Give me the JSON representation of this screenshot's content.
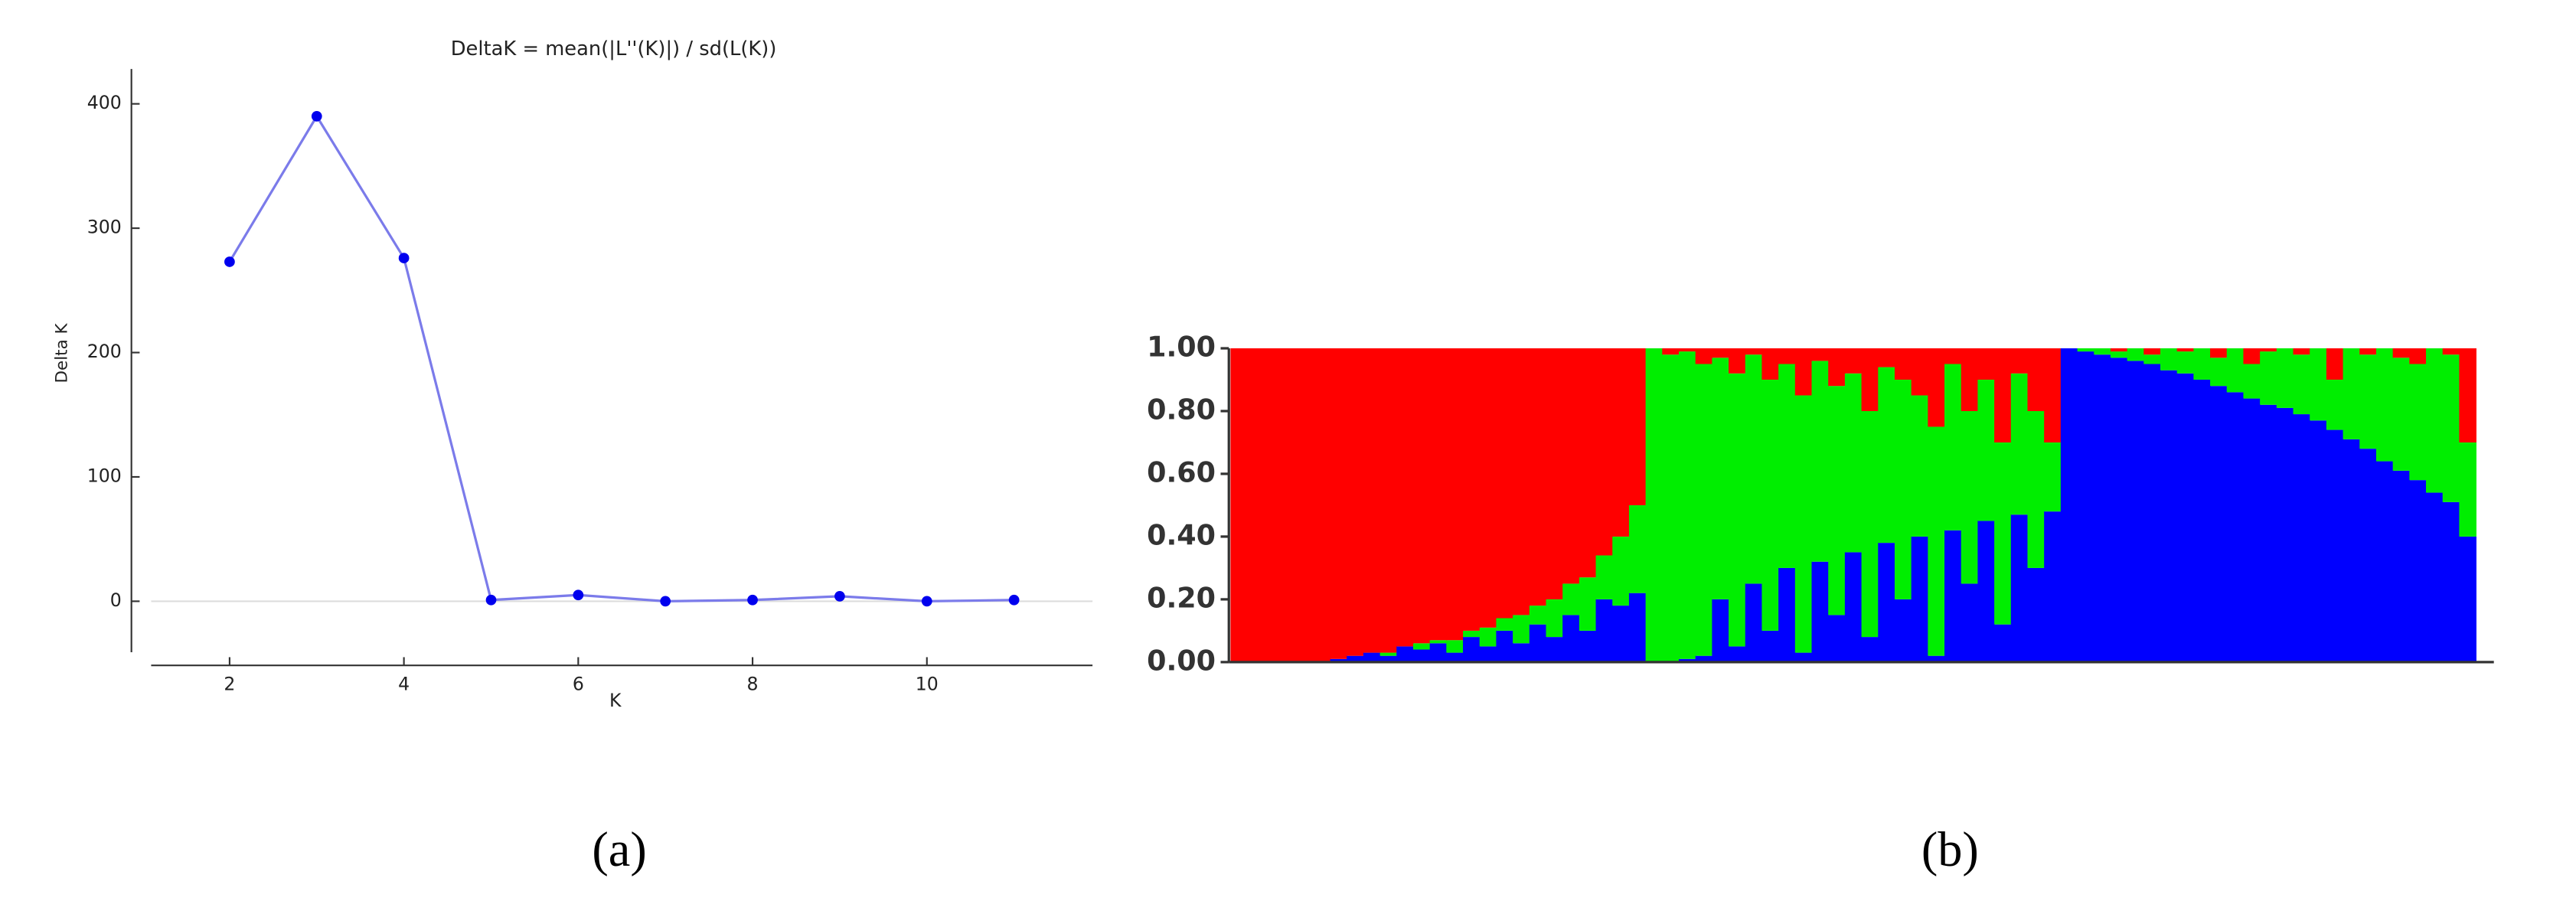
{
  "chart_data": [
    {
      "type": "line",
      "title": "DeltaK = mean(|L''(K)|) / sd(L(K))",
      "xlabel": "K",
      "ylabel": "Delta K",
      "caption": "(a)",
      "x": [
        2,
        3,
        4,
        5,
        6,
        7,
        8,
        9,
        10,
        11
      ],
      "values": [
        273,
        390,
        276,
        1,
        5,
        0,
        1,
        4,
        0,
        1
      ],
      "color": "#7b7bea",
      "marker_color": "#0000ee",
      "xlim": [
        1.1,
        11.9
      ],
      "ylim": [
        -41,
        428
      ],
      "xticks": [
        2,
        4,
        6,
        8,
        10
      ],
      "yticks": [
        0,
        100,
        200,
        300,
        400
      ],
      "zero_line": true
    },
    {
      "type": "bar",
      "stacked": true,
      "caption": "(b)",
      "categories": [
        null,
        null,
        null,
        null,
        null,
        null,
        null,
        null,
        null,
        null,
        null,
        null,
        null,
        null,
        null,
        null,
        null,
        null,
        null,
        null,
        null,
        null,
        null,
        null,
        null,
        null,
        null,
        null,
        null,
        null,
        null,
        null,
        null,
        null,
        null,
        null,
        null,
        null,
        null,
        null,
        null,
        null,
        null,
        null,
        null,
        null,
        null,
        null,
        null,
        null,
        null,
        null,
        null,
        null,
        null,
        null,
        null,
        null,
        null,
        null,
        null,
        null,
        null,
        null,
        null,
        null,
        null,
        null,
        null,
        null,
        null,
        null,
        null,
        null,
        null
      ],
      "series": [
        {
          "color": "#0000ff",
          "values": [
            0,
            0,
            0,
            0,
            0,
            0,
            0.01,
            0.02,
            0.03,
            0.02,
            0.05,
            0.04,
            0.06,
            0.03,
            0.08,
            0.05,
            0.1,
            0.06,
            0.12,
            0.08,
            0.15,
            0.1,
            0.2,
            0.18,
            0.22,
            0,
            0,
            0.01,
            0.02,
            0.2,
            0.05,
            0.25,
            0.1,
            0.3,
            0.03,
            0.32,
            0.15,
            0.35,
            0.08,
            0.38,
            0.2,
            0.4,
            0.02,
            0.42,
            0.25,
            0.45,
            0.12,
            0.47,
            0.3,
            0.48,
            1,
            0.99,
            0.98,
            0.97,
            0.96,
            0.95,
            0.93,
            0.92,
            0.9,
            0.88,
            0.86,
            0.84,
            0.82,
            0.81,
            0.79,
            0.77,
            0.74,
            0.71,
            0.68,
            0.64,
            0.61,
            0.58,
            0.54,
            0.51,
            0.4
          ]
        },
        {
          "color": "#00ee00",
          "values": [
            0,
            0,
            0,
            0,
            0,
            0,
            0,
            0,
            0,
            0.01,
            0,
            0.02,
            0.01,
            0.04,
            0.02,
            0.06,
            0.04,
            0.09,
            0.06,
            0.12,
            0.1,
            0.17,
            0.14,
            0.22,
            0.28,
            1,
            0.98,
            0.98,
            0.93,
            0.77,
            0.87,
            0.73,
            0.8,
            0.65,
            0.82,
            0.64,
            0.73,
            0.57,
            0.72,
            0.56,
            0.7,
            0.45,
            0.73,
            0.53,
            0.55,
            0.45,
            0.58,
            0.45,
            0.5,
            0.22,
            0,
            0.01,
            0.02,
            0.02,
            0.04,
            0.03,
            0.07,
            0.07,
            0.1,
            0.09,
            0.14,
            0.11,
            0.17,
            0.19,
            0.19,
            0.23,
            0.16,
            0.29,
            0.3,
            0.36,
            0.36,
            0.37,
            0.46,
            0.47,
            0.3
          ]
        },
        {
          "color": "#ff0000",
          "values": [
            1,
            1,
            1,
            1,
            1,
            1,
            0.99,
            0.98,
            0.97,
            0.97,
            0.95,
            0.94,
            0.93,
            0.93,
            0.9,
            0.89,
            0.86,
            0.85,
            0.82,
            0.8,
            0.75,
            0.73,
            0.66,
            0.6,
            0.5,
            0,
            0.02,
            0.01,
            0.05,
            0.03,
            0.08,
            0.02,
            0.1,
            0.05,
            0.15,
            0.04,
            0.12,
            0.08,
            0.2,
            0.06,
            0.1,
            0.15,
            0.25,
            0.05,
            0.2,
            0.1,
            0.3,
            0.08,
            0.2,
            0.3,
            0,
            0,
            0,
            0.01,
            0,
            0.02,
            0,
            0.01,
            0,
            0.03,
            0,
            0.05,
            0.01,
            0,
            0.02,
            0,
            0.1,
            0,
            0.02,
            0,
            0.03,
            0.05,
            0,
            0.02,
            0.3
          ]
        }
      ],
      "ylim": [
        0,
        1
      ],
      "yticks": [
        {
          "value": 0,
          "label": "0.00"
        },
        {
          "value": 0.2,
          "label": "0.20"
        },
        {
          "value": 0.4,
          "label": "0.40"
        },
        {
          "value": 0.6,
          "label": "0.60"
        },
        {
          "value": 0.8,
          "label": "0.80"
        },
        {
          "value": 1,
          "label": "1.00"
        }
      ]
    }
  ]
}
